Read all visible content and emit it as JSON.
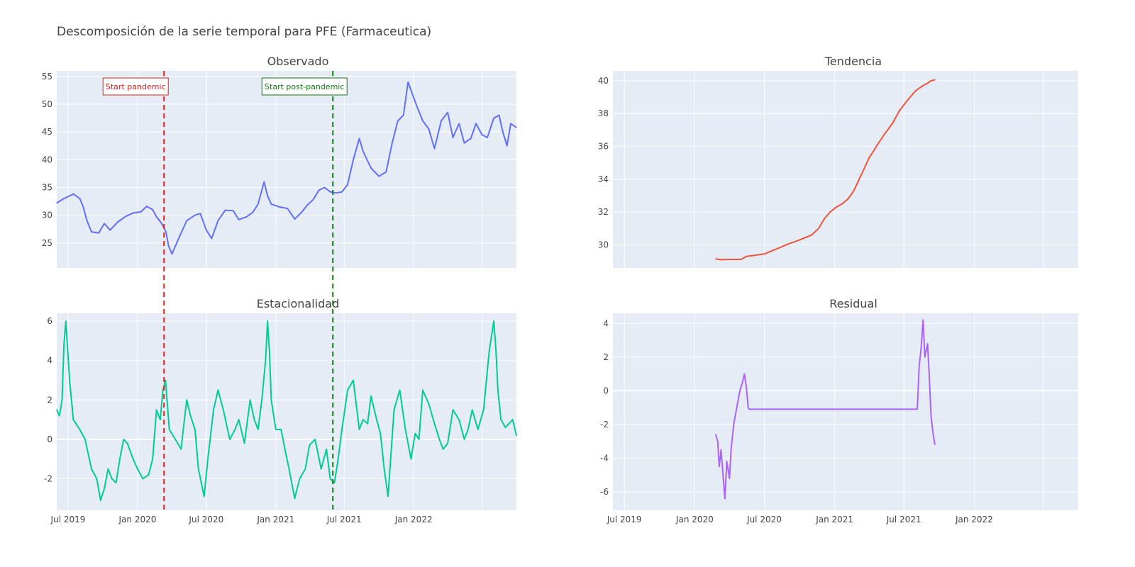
{
  "title": "Descomposición de la serie temporal para PFE (Farmaceutica)",
  "colors": {
    "plot_bg": "#e5ecf6",
    "grid": "#ffffff",
    "observed": "#636efa",
    "trend": "#ef553b",
    "seasonal": "#00cc96",
    "residual": "#ab63fa",
    "pandemic": "#e0201b",
    "post_pandemic": "#137a13"
  },
  "annotations": [
    {
      "label": "Start pandemic",
      "date": "2020-03-11",
      "color": "red"
    },
    {
      "label": "Start post-pandemic",
      "date": "2021-06-01",
      "color": "green"
    }
  ],
  "chart_data": [
    {
      "type": "line",
      "title": "Observado",
      "xlim": [
        "2019-06-01",
        "2022-09-30"
      ],
      "ylim": [
        20.5,
        56
      ],
      "yticks": [
        25,
        30,
        35,
        40,
        45,
        50,
        55
      ],
      "xticks": [],
      "series": [
        {
          "x": [
            "2019-06-01",
            "2019-06-20",
            "2019-07-15",
            "2019-08-01",
            "2019-08-10",
            "2019-08-20",
            "2019-09-01",
            "2019-09-20",
            "2019-10-05",
            "2019-10-20",
            "2019-11-10",
            "2019-12-01",
            "2019-12-20",
            "2020-01-10",
            "2020-01-25",
            "2020-02-10",
            "2020-02-20",
            "2020-03-05",
            "2020-03-16",
            "2020-03-23",
            "2020-04-01",
            "2020-04-20",
            "2020-05-10",
            "2020-06-01",
            "2020-06-15",
            "2020-07-01",
            "2020-07-15",
            "2020-08-01",
            "2020-08-20",
            "2020-09-10",
            "2020-09-25",
            "2020-10-15",
            "2020-11-01",
            "2020-11-15",
            "2020-12-01",
            "2020-12-10",
            "2020-12-20",
            "2021-01-10",
            "2021-02-01",
            "2021-02-20",
            "2021-03-10",
            "2021-03-25",
            "2021-04-10",
            "2021-04-25",
            "2021-05-10",
            "2021-05-25",
            "2021-06-10",
            "2021-06-25",
            "2021-07-10",
            "2021-07-25",
            "2021-08-10",
            "2021-08-20",
            "2021-09-10",
            "2021-10-01",
            "2021-10-20",
            "2021-11-05",
            "2021-11-20",
            "2021-12-05",
            "2021-12-17",
            "2021-12-25",
            "2022-01-10",
            "2022-01-25",
            "2022-02-10",
            "2022-02-25",
            "2022-03-15",
            "2022-04-01",
            "2022-04-15",
            "2022-05-01",
            "2022-05-15",
            "2022-06-01",
            "2022-06-15",
            "2022-07-01",
            "2022-07-15",
            "2022-08-01",
            "2022-08-15",
            "2022-08-25",
            "2022-09-05",
            "2022-09-15",
            "2022-09-30"
          ],
          "y": [
            32.2,
            33.0,
            33.8,
            33.0,
            31.5,
            29.0,
            27.0,
            26.8,
            28.5,
            27.3,
            28.8,
            29.8,
            30.4,
            30.6,
            31.6,
            31.0,
            29.7,
            28.5,
            27.0,
            24.5,
            23.0,
            26.0,
            29.0,
            30.0,
            30.3,
            27.3,
            25.8,
            29.0,
            30.9,
            30.8,
            29.2,
            29.7,
            30.5,
            32.0,
            36.0,
            33.5,
            32.0,
            31.5,
            31.2,
            29.3,
            30.5,
            31.8,
            32.8,
            34.5,
            35.0,
            34.2,
            34.0,
            34.2,
            35.5,
            40.0,
            43.8,
            41.5,
            38.5,
            37.0,
            37.8,
            43.0,
            47.0,
            48.0,
            54.0,
            52.5,
            49.5,
            47.0,
            45.5,
            42.0,
            47.0,
            48.5,
            44.0,
            46.5,
            43.0,
            43.8,
            46.5,
            44.5,
            44.0,
            47.5,
            48.0,
            45.0,
            42.5,
            46.5,
            45.8
          ]
        }
      ]
    },
    {
      "type": "line",
      "title": "Tendencia",
      "xlim": [
        "2019-06-01",
        "2022-09-30"
      ],
      "ylim": [
        28.6,
        40.6
      ],
      "yticks": [
        30,
        32,
        34,
        36,
        38,
        40
      ],
      "xticks": [],
      "series": [
        {
          "x": [
            "2020-02-25",
            "2020-03-10",
            "2020-04-01",
            "2020-05-01",
            "2020-05-15",
            "2020-06-01",
            "2020-07-01",
            "2020-08-01",
            "2020-09-01",
            "2020-10-01",
            "2020-11-01",
            "2020-11-20",
            "2020-12-05",
            "2020-12-20",
            "2021-01-05",
            "2021-01-20",
            "2021-02-05",
            "2021-02-20",
            "2021-03-10",
            "2021-04-01",
            "2021-04-20",
            "2021-05-10",
            "2021-06-01",
            "2021-06-20",
            "2021-07-10",
            "2021-08-01",
            "2021-08-20",
            "2021-09-01",
            "2021-09-10",
            "2021-09-20"
          ],
          "y": [
            29.15,
            29.1,
            29.12,
            29.12,
            29.3,
            29.35,
            29.45,
            29.75,
            30.05,
            30.3,
            30.6,
            31.0,
            31.6,
            32.0,
            32.3,
            32.5,
            32.8,
            33.3,
            34.2,
            35.3,
            36.0,
            36.7,
            37.4,
            38.2,
            38.8,
            39.4,
            39.7,
            39.85,
            40.0,
            40.05
          ]
        }
      ]
    },
    {
      "type": "line",
      "title": "Estacionalidad",
      "xlim": [
        "2019-06-01",
        "2022-09-30"
      ],
      "ylim": [
        -3.6,
        6.4
      ],
      "yticks": [
        -2,
        0,
        2,
        4,
        6
      ],
      "xticks": [
        "Jul 2019",
        "Jan 2020",
        "Jul 2020",
        "Jan 2021",
        "Jul 2021",
        "Jan 2022"
      ],
      "series": [
        {
          "x": [
            "2019-06-01",
            "2019-06-08",
            "2019-06-15",
            "2019-06-20",
            "2019-06-25",
            "2019-07-05",
            "2019-07-15",
            "2019-08-01",
            "2019-08-15",
            "2019-09-01",
            "2019-09-15",
            "2019-09-25",
            "2019-10-05",
            "2019-10-15",
            "2019-10-25",
            "2019-11-05",
            "2019-11-15",
            "2019-11-25",
            "2019-12-05",
            "2019-12-20",
            "2020-01-01",
            "2020-01-15",
            "2020-01-30",
            "2020-02-10",
            "2020-02-20",
            "2020-03-01",
            "2020-03-08",
            "2020-03-15",
            "2020-03-25",
            "2020-04-10",
            "2020-04-25",
            "2020-05-10",
            "2020-05-20",
            "2020-06-01",
            "2020-06-10",
            "2020-06-25",
            "2020-07-05",
            "2020-07-20",
            "2020-08-01",
            "2020-08-15",
            "2020-09-01",
            "2020-09-15",
            "2020-09-25",
            "2020-10-10",
            "2020-10-25",
            "2020-11-05",
            "2020-11-15",
            "2020-11-25",
            "2020-12-05",
            "2020-12-10",
            "2020-12-15",
            "2020-12-20",
            "2021-01-01",
            "2021-01-15",
            "2021-01-25",
            "2021-02-05",
            "2021-02-20",
            "2021-03-05",
            "2021-03-20",
            "2021-03-31",
            "2021-04-15",
            "2021-05-01",
            "2021-05-15",
            "2021-05-25",
            "2021-06-05",
            "2021-06-15",
            "2021-06-25",
            "2021-07-10",
            "2021-07-25",
            "2021-08-10",
            "2021-08-20",
            "2021-09-01",
            "2021-09-10",
            "2021-09-25",
            "2021-10-05",
            "2021-10-15",
            "2021-10-25",
            "2021-11-10",
            "2021-11-25",
            "2021-12-10",
            "2021-12-25",
            "2022-01-05",
            "2022-01-15",
            "2022-01-25",
            "2022-02-10",
            "2022-02-25",
            "2022-03-10",
            "2022-03-20",
            "2022-04-01",
            "2022-04-15",
            "2022-05-01",
            "2022-05-15",
            "2022-05-25",
            "2022-06-05",
            "2022-06-20",
            "2022-07-05",
            "2022-07-20",
            "2022-08-01",
            "2022-08-07",
            "2022-08-12",
            "2022-08-20",
            "2022-09-01",
            "2022-09-10",
            "2022-09-20",
            "2022-09-30"
          ],
          "y": [
            1.5,
            1.2,
            2.0,
            4.8,
            6.0,
            3.0,
            1.0,
            0.5,
            0.0,
            -1.5,
            -2.0,
            -3.1,
            -2.5,
            -1.5,
            -2.0,
            -2.2,
            -1.0,
            0.0,
            -0.2,
            -1.0,
            -1.5,
            -2.0,
            -1.8,
            -1.0,
            1.5,
            1.0,
            2.5,
            3.0,
            0.5,
            0.0,
            -0.5,
            2.0,
            1.2,
            0.5,
            -1.5,
            -2.9,
            -1.0,
            1.5,
            2.5,
            1.5,
            0.0,
            0.5,
            1.0,
            -0.2,
            2.0,
            1.0,
            0.5,
            2.0,
            4.0,
            6.0,
            4.5,
            2.0,
            0.5,
            0.5,
            -0.5,
            -1.5,
            -3.0,
            -2.0,
            -1.5,
            -0.3,
            0.0,
            -1.5,
            -0.5,
            -2.0,
            -2.2,
            -1.0,
            0.5,
            2.5,
            3.0,
            0.5,
            1.0,
            0.8,
            2.2,
            1.0,
            0.3,
            -1.5,
            -2.9,
            1.5,
            2.5,
            0.5,
            -1.0,
            0.3,
            0.0,
            2.5,
            1.8,
            0.8,
            0.0,
            -0.5,
            -0.2,
            1.5,
            1.0,
            0.0,
            0.5,
            1.5,
            0.5,
            1.5,
            4.5,
            6.0,
            4.5,
            2.5,
            1.0,
            0.6,
            0.8,
            1.0,
            0.2
          ]
        }
      ]
    },
    {
      "type": "line",
      "title": "Residual",
      "xlim": [
        "2019-06-01",
        "2022-09-30"
      ],
      "ylim": [
        -7.1,
        4.6
      ],
      "yticks": [
        -6,
        -4,
        -2,
        0,
        2,
        4
      ],
      "xticks": [
        "Jul 2019",
        "Jan 2020",
        "Jul 2020",
        "Jan 2021",
        "Jul 2021",
        "Jan 2022"
      ],
      "series": [
        {
          "x": [
            "2020-02-25",
            "2020-03-01",
            "2020-03-05",
            "2020-03-10",
            "2020-03-15",
            "2020-03-20",
            "2020-03-25",
            "2020-04-01",
            "2020-04-05",
            "2020-04-12",
            "2020-04-20",
            "2020-04-28",
            "2020-05-05",
            "2020-05-10",
            "2020-05-15",
            "2020-05-20",
            "2020-05-22",
            "2021-08-05",
            "2021-08-10",
            "2021-08-15",
            "2021-08-20",
            "2021-08-25",
            "2021-09-01",
            "2021-09-05",
            "2021-09-10",
            "2021-09-15",
            "2021-09-20"
          ],
          "y": [
            -2.6,
            -3.0,
            -4.5,
            -3.5,
            -5.0,
            -6.4,
            -4.2,
            -5.2,
            -3.5,
            -2.0,
            -1.0,
            0.0,
            0.5,
            1.0,
            0.2,
            -1.0,
            -1.1,
            -1.1,
            1.5,
            2.5,
            4.2,
            2.0,
            2.8,
            1.0,
            -1.5,
            -2.5,
            -3.2
          ]
        }
      ]
    }
  ]
}
